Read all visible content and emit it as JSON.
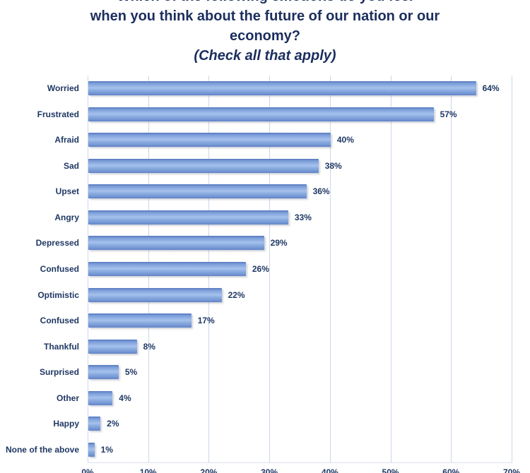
{
  "title": {
    "line1_cropped": "Which of the following emotions do you feel",
    "line2": "when you think about the future of our nation or our",
    "line3": "economy?",
    "line4": "(Check all that apply)"
  },
  "chart_data": {
    "type": "bar",
    "orientation": "horizontal",
    "title": "when you think about the future of our nation or our economy? (Check all that apply)",
    "categories": [
      "Worried",
      "Frustrated",
      "Afraid",
      "Sad",
      "Upset",
      "Angry",
      "Depressed",
      "Confused",
      "Optimistic",
      "Confused",
      "Thankful",
      "Surprised",
      "Other",
      "Happy",
      "None of the above"
    ],
    "values": [
      64,
      57,
      40,
      38,
      36,
      33,
      29,
      26,
      22,
      17,
      8,
      5,
      4,
      2,
      1
    ],
    "value_labels": [
      "64%",
      "57%",
      "40%",
      "38%",
      "36%",
      "33%",
      "29%",
      "26%",
      "22%",
      "17%",
      "8%",
      "5%",
      "4%",
      "2%",
      "1%"
    ],
    "xlabel": "",
    "ylabel": "",
    "xlim": [
      0,
      70
    ],
    "x_ticks": [
      "0%",
      "10%",
      "20%",
      "30%",
      "40%",
      "50%",
      "60%",
      "70%"
    ],
    "grid": true,
    "legend": "none",
    "colors": {
      "bar_fill_top": "#5577bd",
      "bar_fill_light": "#a6c1ec",
      "bar_fill_bottom": "#6080c4",
      "text_navy": "#1f3864",
      "title_navy": "#1c2e5e",
      "gridline": "#ccd7e9",
      "background": "#ffffff"
    }
  }
}
